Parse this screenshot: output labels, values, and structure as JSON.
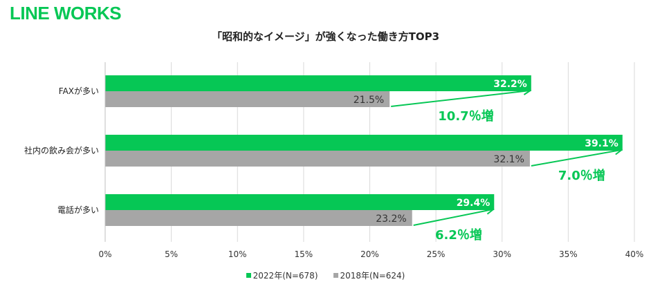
{
  "brand": "LINE WORKS",
  "chart_data": {
    "type": "bar",
    "orientation": "horizontal",
    "title": "「昭和的なイメージ」が強くなった働き方TOP3",
    "categories": [
      "FAXが多い",
      "社内の飲み会が多い",
      "電話が多い"
    ],
    "series": [
      {
        "name": "2022年(N=678)",
        "color": "#06c755",
        "values": [
          32.2,
          39.1,
          29.4
        ]
      },
      {
        "name": "2018年(N=624)",
        "color": "#a6a6a6",
        "values": [
          21.5,
          32.1,
          23.2
        ]
      }
    ],
    "value_labels": {
      "2022": [
        "32.2%",
        "39.1%",
        "29.4%"
      ],
      "2018": [
        "21.5%",
        "32.1%",
        "23.2%"
      ]
    },
    "annotations": [
      "10.7％増",
      "7.0％増",
      "6.2％増"
    ],
    "xlim": [
      0,
      40
    ],
    "x_ticks": [
      "0%",
      "5%",
      "10%",
      "15%",
      "20%",
      "25%",
      "30%",
      "35%",
      "40%"
    ],
    "grid": "vertical",
    "legend_position": "bottom"
  }
}
